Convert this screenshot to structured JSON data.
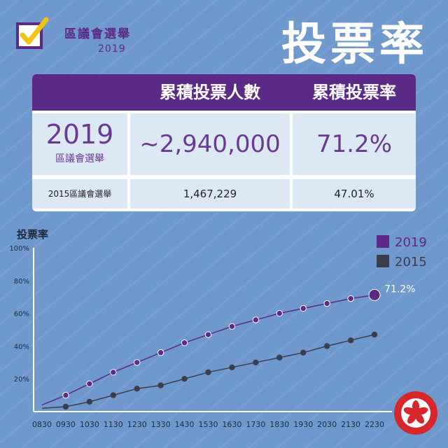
{
  "header": {
    "event_title": "區議會選舉",
    "event_year": "2019",
    "page_title": "投票率"
  },
  "table": {
    "columns": [
      "累積投票人數",
      "累積投票率"
    ],
    "row_2019": {
      "year": "2019",
      "label": "區議會選舉",
      "turnout_count": "~2,940,000",
      "turnout_rate": "71.2%"
    },
    "row_2015": {
      "label": "2015區議會選舉",
      "turnout_count": "1,467,229",
      "turnout_rate": "47.01%"
    }
  },
  "colors": {
    "background": "#6f98cd",
    "purple": "#5b2a86",
    "series_2019": "#5b2a86",
    "series_2015": "#3a3d4c",
    "cell": "#dde8f5"
  },
  "icons": [
    "checkbox-icon",
    "hong-kong-emblem-icon"
  ],
  "chart_data": {
    "type": "line",
    "ylabel": "投票率",
    "ylim": [
      0,
      100
    ],
    "yticks": [
      "100%",
      "80%",
      "60%",
      "40%",
      "20%"
    ],
    "ytick_values": [
      100,
      80,
      60,
      40,
      20
    ],
    "x": [
      "0830",
      "0930",
      "1030",
      "1130",
      "1230",
      "1330",
      "1430",
      "1530",
      "1630",
      "1730",
      "1830",
      "1930",
      "2030",
      "2130",
      "2230"
    ],
    "series": [
      {
        "name": "2019",
        "values": [
          null,
          10,
          17,
          24,
          30,
          36,
          42,
          47,
          52,
          56,
          60,
          63,
          66,
          69,
          71.2
        ],
        "last_label": "71.2%",
        "start": 4
      },
      {
        "name": "2015",
        "values": [
          null,
          3,
          6,
          10,
          14,
          16,
          20,
          24,
          27,
          30,
          33,
          36,
          40,
          43.5,
          47.01
        ],
        "start": 2
      }
    ],
    "legend": "top-right",
    "grid": false
  }
}
